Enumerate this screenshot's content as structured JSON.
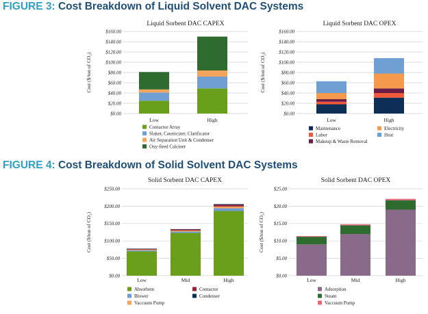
{
  "figures": [
    {
      "label": "FIGURE 3:",
      "title": "Cost Breakdown of Liquid Solvent DAC Systems"
    },
    {
      "label": "FIGURE 4:",
      "title": "Cost Breakdown of Solid Solvent DAC Systems"
    }
  ],
  "chart_data": [
    {
      "type": "bar",
      "stacked": true,
      "title": "Liquid Sorbent DAC CAPEX",
      "ylabel": "Cost ($/ton of CO₂)",
      "ylim": [
        0,
        160
      ],
      "yticks": [
        0,
        20,
        40,
        60,
        80,
        100,
        120,
        140,
        160
      ],
      "ytick_labels": [
        "$0.00",
        "$20.00",
        "$40.00",
        "$60.00",
        "$80.00",
        "$100.00",
        "$120.00",
        "$140.00",
        "$160.00"
      ],
      "categories": [
        "Low",
        "High"
      ],
      "grid": true,
      "legend_position": "bottom",
      "series": [
        {
          "name": "Contactor Array",
          "color": "#6a9f1c",
          "values": [
            25,
            49
          ]
        },
        {
          "name": "Slaker, Causticizer, Clarificator",
          "color": "#6f9fd3",
          "values": [
            16,
            23
          ]
        },
        {
          "name": "Air Separation Unit & Condenser",
          "color": "#f4a55c",
          "values": [
            6,
            12
          ]
        },
        {
          "name": "Oxy-fired Calciner",
          "color": "#2e6b2e",
          "values": [
            34,
            66
          ]
        }
      ]
    },
    {
      "type": "bar",
      "stacked": true,
      "title": "Liquid Sorbent DAC OPEX",
      "ylabel": "Cost ($/ton of CO₂)",
      "ylim": [
        0,
        160
      ],
      "yticks": [
        0,
        20,
        40,
        60,
        80,
        100,
        120,
        140,
        160
      ],
      "ytick_labels": [
        "$0.00",
        "$20.00",
        "$40.00",
        "$60.00",
        "$80.00",
        "$100.00",
        "$120.00",
        "$140.00",
        "$160.00"
      ],
      "categories": [
        "Low",
        "High"
      ],
      "grid": true,
      "legend_position": "bottom",
      "series": [
        {
          "name": "Maintenance",
          "color": "#0d2f57",
          "values": [
            18,
            31
          ]
        },
        {
          "name": "Labor",
          "color": "#f05a3a",
          "values": [
            5,
            9
          ]
        },
        {
          "name": "Makeup & Waste Removal",
          "color": "#6b1e45",
          "values": [
            5,
            9
          ]
        },
        {
          "name": "Electricity",
          "color": "#f59a4c",
          "values": [
            12,
            29
          ]
        },
        {
          "name": "Heat",
          "color": "#6f9fd3",
          "values": [
            23,
            30
          ]
        }
      ]
    },
    {
      "type": "bar",
      "stacked": true,
      "title": "Solid Sorbent DAC CAPEX",
      "ylabel": "Cost ($/ton of CO₂)",
      "ylim": [
        0,
        250
      ],
      "yticks": [
        0,
        50,
        100,
        150,
        200,
        250
      ],
      "ytick_labels": [
        "$0.00",
        "$50.00",
        "$100.00",
        "$150.00",
        "$200.00",
        "$250.00"
      ],
      "categories": [
        "Low",
        "Mid",
        "High"
      ],
      "grid": true,
      "legend_position": "bottom",
      "series": [
        {
          "name": "Absorbent",
          "color": "#6a9f1c",
          "values": [
            70,
            123,
            186
          ]
        },
        {
          "name": "Blower",
          "color": "#6f9fd3",
          "values": [
            3,
            4,
            8
          ]
        },
        {
          "name": "Vaccuum Pump",
          "color": "#f4a55c",
          "values": [
            2,
            3,
            5
          ]
        },
        {
          "name": "Contactor",
          "color": "#9b2335",
          "values": [
            2,
            3,
            5
          ]
        },
        {
          "name": "Condenser",
          "color": "#0d2f57",
          "values": [
            1,
            1,
            2
          ]
        }
      ]
    },
    {
      "type": "bar",
      "stacked": true,
      "title": "Solid Sorbent DAC OPEX",
      "ylabel": "Cost ($/ton of CO₂)",
      "ylim": [
        0,
        25
      ],
      "yticks": [
        0,
        5,
        10,
        15,
        20,
        25
      ],
      "ytick_labels": [
        "$0.00",
        "$5.00",
        "$10.00",
        "$15.00",
        "$20.00",
        "$25.00"
      ],
      "categories": [
        "Low",
        "Mid",
        "High"
      ],
      "grid": true,
      "legend_position": "bottom",
      "series": [
        {
          "name": "Adsorption",
          "color": "#8a6a8a",
          "values": [
            9,
            12,
            19
          ]
        },
        {
          "name": "Steam",
          "color": "#2e6b2e",
          "values": [
            2.2,
            2.5,
            2.7
          ]
        },
        {
          "name": "Vaccuum Pump",
          "color": "#e8647a",
          "values": [
            0.2,
            0.3,
            0.4
          ]
        }
      ]
    }
  ]
}
